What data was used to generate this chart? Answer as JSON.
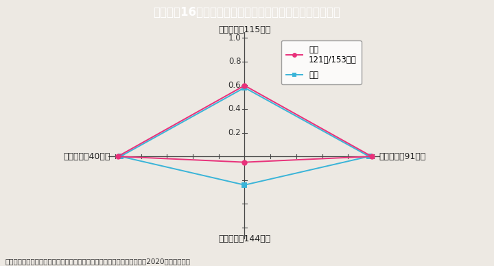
{
  "title": "Ｉ－１－16図　各分野におけるジェンダー・ギャップ指数",
  "title_bg_color": "#1ab8cc",
  "bg_color": "#ede9e3",
  "axes_labels": [
    "経済分野（115位）",
    "健康分野（40位）",
    "政治分野（144位）",
    "教育分野（91位）"
  ],
  "japan_values": [
    0.598,
    0.979,
    0.049,
    0.983
  ],
  "average_values": [
    0.58,
    0.958,
    0.241,
    0.963
  ],
  "japan_color": "#e8317a",
  "average_color": "#3ab4d8",
  "legend_japan_line1": "日本",
  "legend_japan_line2": "121位/153か国",
  "legend_average": "平均",
  "yticks": [
    0.2,
    0.4,
    0.6,
    0.8,
    1.0
  ],
  "footnote": "（備考）世界経済フォーラム「グローバル・ジェンダー・ギャップ報告書2020」より作成。"
}
